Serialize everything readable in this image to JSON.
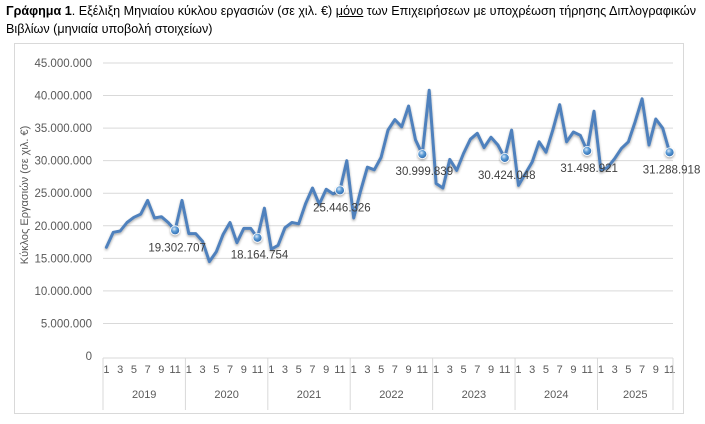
{
  "caption": {
    "bold": "Γράφημα 1",
    "part1": ". Εξέλιξη Μηνιαίου κύκλου εργασιών (σε χιλ. €) ",
    "underlined": "μόνο",
    "part2": " των Επιχειρήσεων με υποχρέωση τήρησης Διπλογραφικών Βιβλίων (μηνιαία υποβολή στοιχείων)"
  },
  "chart_data": {
    "type": "line",
    "title": "Γράφημα 1. Εξέλιξη Μηνιαίου κύκλου εργασιών (σε χιλ. €) μόνο των Επιχειρήσεων με υποχρέωση τήρησης Διπλογραφικών Βιβλίων (μηνιαία υποβολή στοιχείων)",
    "xlabel": "",
    "ylabel": "Κύκλος Εργασιών (σε χιλ. €)",
    "ylim": [
      0,
      45000000
    ],
    "yticks": [
      0,
      5000000,
      10000000,
      15000000,
      20000000,
      25000000,
      30000000,
      35000000,
      40000000,
      45000000
    ],
    "ytick_labels": [
      "0",
      "5.000.000",
      "10.000.000",
      "15.000.000",
      "20.000.000",
      "25.000.000",
      "30.000.000",
      "35.000.000",
      "40.000.000",
      "45.000.000"
    ],
    "grid": true,
    "legend": "none",
    "line_color": "#4f81bd",
    "years": [
      {
        "year": "2019",
        "months": 12
      },
      {
        "year": "2020",
        "months": 12
      },
      {
        "year": "2021",
        "months": 12
      },
      {
        "year": "2022",
        "months": 12
      },
      {
        "year": "2023",
        "months": 12
      },
      {
        "year": "2024",
        "months": 12
      },
      {
        "year": "2025",
        "months": 11
      }
    ],
    "month_tick_labels": [
      "1",
      "3",
      "5",
      "7",
      "9",
      "11"
    ],
    "series": [
      {
        "name": "Μηνιαίος κύκλος εργασιών",
        "values": [
          16700000,
          19000000,
          19200000,
          20500000,
          21300000,
          21800000,
          23900000,
          21200000,
          21400000,
          20500000,
          19302707,
          23900000,
          18800000,
          18800000,
          17600000,
          14500000,
          16000000,
          18700000,
          20500000,
          17400000,
          19600000,
          19600000,
          18164754,
          22700000,
          16400000,
          17000000,
          19700000,
          20500000,
          20300000,
          23400000,
          25800000,
          23300000,
          25600000,
          24900000,
          25446326,
          30000000,
          21200000,
          25300000,
          29000000,
          28600000,
          30500000,
          34700000,
          36300000,
          35200000,
          38400000,
          33200000,
          30999839,
          40800000,
          26500000,
          25800000,
          30200000,
          28500000,
          31100000,
          33300000,
          34200000,
          32000000,
          33600000,
          32400000,
          30424048,
          34700000,
          26200000,
          28000000,
          29800000,
          32900000,
          31300000,
          34700000,
          38600000,
          32900000,
          34400000,
          33900000,
          31498921,
          37600000,
          28500000,
          29000000,
          30300000,
          31900000,
          32900000,
          36000000,
          39500000,
          32400000,
          36400000,
          35000000,
          31288918
        ]
      }
    ],
    "annotations": [
      {
        "index": 10,
        "label": "19.302.707"
      },
      {
        "index": 22,
        "label": "18.164.754"
      },
      {
        "index": 34,
        "label": "25.446.326"
      },
      {
        "index": 46,
        "label": "30.999.839"
      },
      {
        "index": 58,
        "label": "30.424.048"
      },
      {
        "index": 70,
        "label": "31.498.921"
      },
      {
        "index": 82,
        "label": "31.288.918"
      }
    ]
  }
}
